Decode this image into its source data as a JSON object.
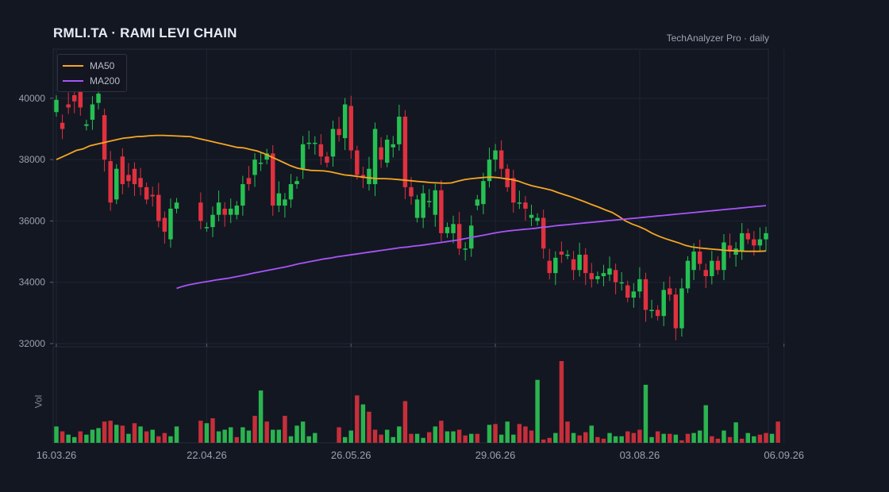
{
  "header": {
    "title": "RMLI.TA  ·  RAMI LEVI CHAIN",
    "source": "TechAnalyzer Pro · daily"
  },
  "colors": {
    "background": "#131722",
    "up": "#26c052",
    "down": "#e0313f",
    "ma50": "#f5a623",
    "ma200": "#a855f7",
    "grid": "#1f2433",
    "axis_text": "#9aa1b0"
  },
  "chart_data": {
    "type": "candlestick",
    "title": "RMLI.TA · RAMI LEVI CHAIN",
    "ylim": [
      32000,
      41600
    ],
    "yticks": [
      32000,
      34000,
      36000,
      38000,
      40000
    ],
    "xtick_labels": [
      "16.03.26",
      "22.04.26",
      "26.05.26",
      "29.06.26",
      "03.08.26",
      "06.09.26"
    ],
    "xtick_index": [
      0,
      25,
      49,
      73,
      97,
      121
    ],
    "volume_label": "Vol",
    "grid": true,
    "legend_position": "top-left",
    "legend": [
      "MA50",
      "MA200"
    ],
    "close": [
      39700,
      39200,
      39800,
      40100,
      39500,
      39100,
      39600,
      40000,
      38000,
      36600,
      37600,
      37900,
      37400,
      37200,
      37200,
      37000,
      36800,
      36800,
      36000,
      35400,
      36400,
      36600,
      null,
      null,
      36000,
      35800,
      35800,
      36200,
      36600,
      36200,
      36400,
      36700,
      37200,
      37300,
      38000,
      37900,
      38200,
      36500,
      36900,
      36600,
      37200,
      37400,
      38500,
      38600,
      38600,
      38200,
      37700,
      39000,
      38800,
      39800,
      38300,
      37500,
      37400,
      37700,
      37200,
      39000,
      38000,
      38500,
      39300,
      37100,
      36800,
      36100,
      36900,
      36600,
      37000,
      35600,
      35800,
      35100,
      35300,
      35100,
      35800,
      36700,
      37300,
      38000,
      38300,
      37700,
      37100,
      36600,
      36700,
      36500,
      36100,
      35900,
      35100,
      34300,
      34800,
      34900,
      34900,
      34400,
      34900,
      34300,
      34100,
      34200,
      34300,
      34400,
      34000,
      34000,
      33500,
      33700,
      34000,
      33100,
      33100,
      33000,
      33000,
      33800,
      33400,
      32500,
      33800,
      34600,
      35000,
      34600,
      34200,
      34300,
      34700,
      35300,
      35200,
      35000,
      35600,
      35200,
      35300,
      35600,
      35800,
      35700
    ],
    "candles": [
      [
        39550,
        39950
      ],
      [
        39200,
        39000
      ],
      [
        39800,
        39700
      ],
      [
        40100,
        39900
      ],
      [
        40250,
        39700
      ],
      [
        39100,
        39150
      ],
      [
        39300,
        39800
      ],
      [
        39850,
        40150
      ],
      [
        39450,
        38000
      ],
      [
        37950,
        36600
      ],
      [
        36700,
        37700
      ],
      [
        38100,
        37200
      ],
      [
        37500,
        37300
      ],
      [
        37700,
        37200
      ],
      [
        37400,
        37100
      ],
      [
        37100,
        36700
      ],
      [
        36850,
        36800
      ],
      [
        36850,
        36000
      ],
      [
        36100,
        35650
      ],
      [
        35400,
        36400
      ],
      [
        36400,
        36600
      ],
      null,
      null,
      null,
      [
        36600,
        36000
      ],
      [
        35800,
        35800
      ],
      [
        35800,
        36200
      ],
      [
        36200,
        36600
      ],
      [
        36400,
        36200
      ],
      [
        36200,
        36400
      ],
      [
        36200,
        36500
      ],
      [
        36500,
        37200
      ],
      [
        37400,
        37200
      ],
      [
        37500,
        38000
      ],
      [
        37900,
        37900
      ],
      [
        38000,
        38200
      ],
      [
        38200,
        36500
      ],
      [
        36500,
        36900
      ],
      [
        36500,
        36700
      ],
      [
        36700,
        37200
      ],
      [
        37200,
        37300
      ],
      [
        37700,
        38500
      ],
      [
        38550,
        38550
      ],
      [
        38550,
        38550
      ],
      [
        38500,
        38100
      ],
      [
        38100,
        37900
      ],
      [
        38100,
        39000
      ],
      [
        39000,
        38800
      ],
      [
        38700,
        39800
      ],
      [
        39750,
        38300
      ],
      [
        38300,
        37500
      ],
      [
        37500,
        37400
      ],
      [
        37200,
        37700
      ],
      [
        37200,
        39000
      ],
      [
        38400,
        38000
      ],
      [
        37900,
        38650
      ],
      [
        38400,
        38500
      ],
      [
        38500,
        39400
      ],
      [
        39400,
        37100
      ],
      [
        37100,
        36800
      ],
      [
        36100,
        36700
      ],
      [
        36100,
        36900
      ],
      [
        36650,
        36650
      ],
      [
        36200,
        37000
      ],
      [
        37000,
        35600
      ],
      [
        35600,
        35800
      ],
      [
        35600,
        35900
      ],
      [
        35900,
        35100
      ],
      [
        35100,
        35100
      ],
      [
        35100,
        35850
      ],
      [
        36500,
        36700
      ],
      [
        36550,
        37300
      ],
      [
        37300,
        38000
      ],
      [
        38000,
        38300
      ],
      [
        38300,
        37700
      ],
      [
        37700,
        37100
      ],
      [
        37400,
        36600
      ],
      [
        36600,
        36600
      ],
      [
        36600,
        36400
      ],
      [
        36100,
        36200
      ],
      [
        36000,
        36100
      ],
      [
        36100,
        35100
      ],
      [
        34700,
        34300
      ],
      [
        34300,
        34800
      ],
      [
        35000,
        34900
      ],
      [
        34900,
        34900
      ],
      [
        34750,
        34400
      ],
      [
        34400,
        34900
      ],
      [
        34900,
        34300
      ],
      [
        34300,
        34100
      ],
      [
        34100,
        34200
      ],
      [
        34200,
        34300
      ],
      [
        34250,
        34450
      ],
      [
        34400,
        34000
      ],
      [
        34000,
        34000
      ],
      [
        33900,
        33500
      ],
      [
        33500,
        33700
      ],
      [
        33700,
        34100
      ],
      [
        34100,
        33100
      ],
      [
        33100,
        33100
      ],
      [
        33100,
        32900
      ],
      [
        32900,
        33750
      ],
      [
        33800,
        33600
      ],
      [
        33600,
        32500
      ],
      [
        32500,
        33800
      ],
      [
        33800,
        34700
      ],
      [
        34400,
        35000
      ],
      [
        35000,
        34600
      ],
      [
        34400,
        34200
      ],
      [
        34200,
        34700
      ],
      [
        34700,
        34400
      ],
      [
        34400,
        35300
      ],
      [
        35200,
        35000
      ],
      [
        34900,
        35100
      ],
      [
        35000,
        35600
      ],
      [
        35600,
        35400
      ],
      [
        35400,
        35200
      ],
      [
        35200,
        35400
      ],
      [
        35400,
        35600
      ]
    ],
    "ma50": [
      38000,
      38100,
      38200,
      38300,
      38350,
      38450,
      38500,
      38550,
      38600,
      38650,
      38700,
      38720,
      38750,
      38760,
      38780,
      38790,
      38790,
      38780,
      38770,
      38760,
      38750,
      38700,
      38650,
      38600,
      38550,
      38500,
      38450,
      38400,
      38380,
      38330,
      38280,
      38200,
      38100,
      38000,
      37900,
      37800,
      37720,
      37680,
      37650,
      37640,
      37630,
      37600,
      37550,
      37500,
      37480,
      37450,
      37420,
      37400,
      37380,
      37380,
      37370,
      37350,
      37330,
      37310,
      37290,
      37270,
      37250,
      37240,
      37230,
      37240,
      37300,
      37350,
      37380,
      37400,
      37420,
      37430,
      37410,
      37380,
      37350,
      37300,
      37220,
      37150,
      37100,
      37050,
      37000,
      36920,
      36850,
      36780,
      36700,
      36620,
      36530,
      36450,
      36360,
      36280,
      36150,
      36000,
      35900,
      35820,
      35720,
      35600,
      35500,
      35420,
      35350,
      35280,
      35200,
      35150,
      35120,
      35100,
      35080,
      35060,
      35040,
      35030,
      35020,
      35010,
      35010,
      35010,
      35020
    ],
    "ma200_start_index": 20,
    "ma200": [
      33800,
      33870,
      33920,
      33960,
      34000,
      34030,
      34070,
      34100,
      34130,
      34170,
      34210,
      34250,
      34300,
      34340,
      34380,
      34420,
      34460,
      34500,
      34550,
      34600,
      34640,
      34680,
      34720,
      34760,
      34790,
      34830,
      34860,
      34890,
      34920,
      34950,
      34980,
      35010,
      35040,
      35070,
      35100,
      35130,
      35150,
      35180,
      35200,
      35230,
      35260,
      35290,
      35320,
      35350,
      35380,
      35420,
      35460,
      35500,
      35540,
      35580,
      35620,
      35650,
      35680,
      35700,
      35720,
      35740,
      35760,
      35790,
      35810,
      35840,
      35860,
      35880,
      35900,
      35920,
      35940,
      35960,
      35980,
      36000,
      36020,
      36040,
      36060,
      36080,
      36100,
      36120,
      36140,
      36160,
      36180,
      36200,
      36220,
      36240,
      36260,
      36280,
      36300,
      36320,
      36340,
      36360,
      36380,
      36400,
      36420,
      36440,
      36460,
      36480,
      36500
    ],
    "volume": [
      {
        "v": 0.2,
        "up": true
      },
      {
        "v": 0.14,
        "up": false
      },
      {
        "v": 0.1,
        "up": true
      },
      {
        "v": 0.07,
        "up": true
      },
      {
        "v": 0.14,
        "up": false
      },
      {
        "v": 0.1,
        "up": true
      },
      {
        "v": 0.16,
        "up": true
      },
      {
        "v": 0.18,
        "up": true
      },
      {
        "v": 0.26,
        "up": false
      },
      {
        "v": 0.27,
        "up": false
      },
      {
        "v": 0.22,
        "up": true
      },
      {
        "v": 0.21,
        "up": false
      },
      {
        "v": 0.11,
        "up": true
      },
      {
        "v": 0.24,
        "up": false
      },
      {
        "v": 0.2,
        "up": true
      },
      {
        "v": 0.14,
        "up": false
      },
      {
        "v": 0.16,
        "up": true
      },
      {
        "v": 0.08,
        "up": false
      },
      {
        "v": 0.12,
        "up": false
      },
      {
        "v": 0.08,
        "up": true
      },
      {
        "v": 0.2,
        "up": true
      },
      {
        "v": 0,
        "up": true
      },
      {
        "v": 0,
        "up": true
      },
      {
        "v": 0,
        "up": true
      },
      {
        "v": 0.27,
        "up": false
      },
      {
        "v": 0.24,
        "up": true
      },
      {
        "v": 0.3,
        "up": false
      },
      {
        "v": 0.14,
        "up": true
      },
      {
        "v": 0.16,
        "up": true
      },
      {
        "v": 0.19,
        "up": true
      },
      {
        "v": 0.07,
        "up": false
      },
      {
        "v": 0.19,
        "up": true
      },
      {
        "v": 0.15,
        "up": true
      },
      {
        "v": 0.33,
        "up": false
      },
      {
        "v": 0.64,
        "up": true
      },
      {
        "v": 0.26,
        "up": false
      },
      {
        "v": 0.16,
        "up": true
      },
      {
        "v": 0.16,
        "up": true
      },
      {
        "v": 0.33,
        "up": false
      },
      {
        "v": 0.08,
        "up": true
      },
      {
        "v": 0.21,
        "up": true
      },
      {
        "v": 0.26,
        "up": true
      },
      {
        "v": 0.08,
        "up": true
      },
      {
        "v": 0.12,
        "up": true
      },
      {
        "v": 0,
        "up": true
      },
      {
        "v": 0,
        "up": true
      },
      {
        "v": 0,
        "up": true
      },
      {
        "v": 0.19,
        "up": false
      },
      {
        "v": 0.07,
        "up": true
      },
      {
        "v": 0.15,
        "up": true
      },
      {
        "v": 0.58,
        "up": false
      },
      {
        "v": 0.47,
        "up": true
      },
      {
        "v": 0.38,
        "up": false
      },
      {
        "v": 0.16,
        "up": false
      },
      {
        "v": 0.1,
        "up": false
      },
      {
        "v": 0.16,
        "up": true
      },
      {
        "v": 0.07,
        "up": true
      },
      {
        "v": 0.2,
        "up": true
      },
      {
        "v": 0.51,
        "up": false
      },
      {
        "v": 0.11,
        "up": false
      },
      {
        "v": 0.11,
        "up": true
      },
      {
        "v": 0.06,
        "up": true
      },
      {
        "v": 0.13,
        "up": false
      },
      {
        "v": 0.2,
        "up": true
      },
      {
        "v": 0.27,
        "up": false
      },
      {
        "v": 0.14,
        "up": true
      },
      {
        "v": 0.14,
        "up": true
      },
      {
        "v": 0.16,
        "up": false
      },
      {
        "v": 0.09,
        "up": false
      },
      {
        "v": 0.11,
        "up": true
      },
      {
        "v": 0.11,
        "up": false
      },
      {
        "v": 0,
        "up": true
      },
      {
        "v": 0.22,
        "up": true
      },
      {
        "v": 0.23,
        "up": false
      },
      {
        "v": 0.1,
        "up": true
      },
      {
        "v": 0.26,
        "up": true
      },
      {
        "v": 0.1,
        "up": true
      },
      {
        "v": 0.23,
        "up": false
      },
      {
        "v": 0.2,
        "up": false
      },
      {
        "v": 0.15,
        "up": false
      },
      {
        "v": 0.77,
        "up": true
      },
      {
        "v": 0.04,
        "up": false
      },
      {
        "v": 0.06,
        "up": false
      },
      {
        "v": 0.12,
        "up": true
      },
      {
        "v": 1.0,
        "up": false
      },
      {
        "v": 0.26,
        "up": false
      },
      {
        "v": 0.12,
        "up": true
      },
      {
        "v": 0.09,
        "up": false
      },
      {
        "v": 0.13,
        "up": false
      },
      {
        "v": 0.21,
        "up": true
      },
      {
        "v": 0.07,
        "up": false
      },
      {
        "v": 0.05,
        "up": false
      },
      {
        "v": 0.12,
        "up": true
      },
      {
        "v": 0.08,
        "up": true
      },
      {
        "v": 0.08,
        "up": true
      },
      {
        "v": 0.14,
        "up": false
      },
      {
        "v": 0.12,
        "up": false
      },
      {
        "v": 0.16,
        "up": false
      },
      {
        "v": 0.71,
        "up": true
      },
      {
        "v": 0.07,
        "up": true
      },
      {
        "v": 0.14,
        "up": false
      },
      {
        "v": 0.11,
        "up": true
      },
      {
        "v": 0.11,
        "up": false
      },
      {
        "v": 0.1,
        "up": true
      },
      {
        "v": 0.03,
        "up": false
      },
      {
        "v": 0.11,
        "up": false
      },
      {
        "v": 0.12,
        "up": true
      },
      {
        "v": 0.15,
        "up": true
      },
      {
        "v": 0.46,
        "up": true
      },
      {
        "v": 0.08,
        "up": false
      },
      {
        "v": 0.05,
        "up": false
      },
      {
        "v": 0.15,
        "up": true
      },
      {
        "v": 0.07,
        "up": false
      },
      {
        "v": 0.25,
        "up": true
      },
      {
        "v": 0.05,
        "up": false
      },
      {
        "v": 0.12,
        "up": true
      },
      {
        "v": 0.08,
        "up": true
      },
      {
        "v": 0.1,
        "up": false
      },
      {
        "v": 0.12,
        "up": false
      },
      {
        "v": 0.11,
        "up": true
      },
      {
        "v": 0.26,
        "up": false
      }
    ]
  }
}
